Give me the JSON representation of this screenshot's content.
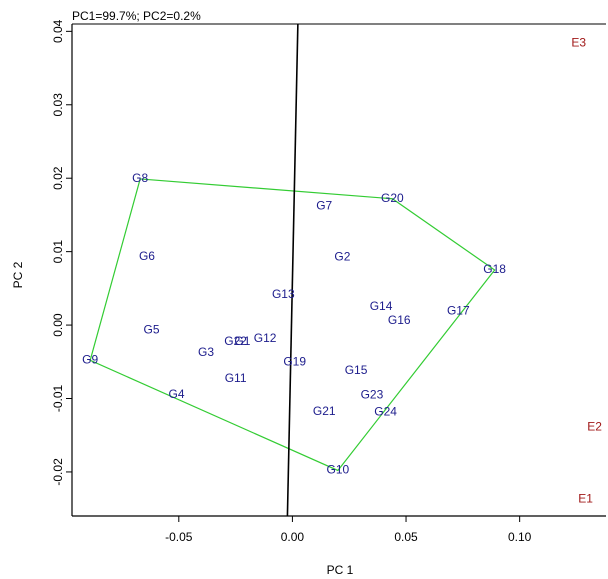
{
  "header": {
    "variance_text": "PC1=99.7%; PC2=0.2%"
  },
  "chart_data": {
    "type": "scatter",
    "title": "",
    "xlabel": "PC 1",
    "ylabel": "PC 2",
    "xlim": [
      -0.097,
      0.138
    ],
    "ylim": [
      -0.026,
      0.041
    ],
    "xticks": [
      -0.05,
      0.0,
      0.05,
      0.1
    ],
    "xtick_labels": [
      "-0.05",
      "0.00",
      "0.05",
      "0.10"
    ],
    "yticks": [
      -0.02,
      -0.01,
      0.0,
      0.01,
      0.02,
      0.03,
      0.04
    ],
    "ytick_labels": [
      "-0.02",
      "-0.01",
      "0.00",
      "0.01",
      "0.02",
      "0.03",
      "0.04"
    ],
    "grid": false,
    "colors": {
      "genotype": "#1c1c8c",
      "environment": "#a01818",
      "hull": "#33cc33",
      "line": "#000000"
    },
    "genotypes": [
      {
        "label": "G1",
        "x": -0.022,
        "y": -0.0023
      },
      {
        "label": "G2",
        "x": 0.022,
        "y": 0.0092
      },
      {
        "label": "G3",
        "x": -0.038,
        "y": -0.0038
      },
      {
        "label": "G4",
        "x": -0.051,
        "y": -0.0095
      },
      {
        "label": "G5",
        "x": -0.062,
        "y": -0.0007
      },
      {
        "label": "G6",
        "x": -0.064,
        "y": 0.0093
      },
      {
        "label": "G7",
        "x": 0.014,
        "y": 0.0162
      },
      {
        "label": "G8",
        "x": -0.067,
        "y": 0.0199
      },
      {
        "label": "G9",
        "x": -0.089,
        "y": -0.0048
      },
      {
        "label": "G10",
        "x": 0.02,
        "y": -0.0198
      },
      {
        "label": "G11",
        "x": -0.025,
        "y": -0.0073
      },
      {
        "label": "G12",
        "x": -0.012,
        "y": -0.0019
      },
      {
        "label": "G13",
        "x": -0.004,
        "y": 0.0041
      },
      {
        "label": "G14",
        "x": 0.039,
        "y": 0.0025
      },
      {
        "label": "G15",
        "x": 0.028,
        "y": -0.0062
      },
      {
        "label": "G16",
        "x": 0.047,
        "y": 0.0006
      },
      {
        "label": "G17",
        "x": 0.073,
        "y": 0.0019
      },
      {
        "label": "G18",
        "x": 0.089,
        "y": 0.0075
      },
      {
        "label": "G19",
        "x": 0.001,
        "y": -0.0051
      },
      {
        "label": "G20",
        "x": 0.044,
        "y": 0.0172
      },
      {
        "label": "G21",
        "x": 0.014,
        "y": -0.0118
      },
      {
        "label": "G22",
        "x": -0.025,
        "y": -0.0023
      },
      {
        "label": "G23",
        "x": 0.035,
        "y": -0.0096
      },
      {
        "label": "G24",
        "x": 0.041,
        "y": -0.0119
      }
    ],
    "environments": [
      {
        "label": "E1",
        "x": 0.129,
        "y": -0.0237
      },
      {
        "label": "E2",
        "x": 0.133,
        "y": -0.0139
      },
      {
        "label": "E3",
        "x": 0.126,
        "y": 0.0384
      }
    ],
    "hull": [
      "G8",
      "G20",
      "G18",
      "G10",
      "G9"
    ],
    "reference_line": {
      "x1": 0.0024,
      "y1": 0.041,
      "x2": -0.0022,
      "y2": -0.026
    }
  }
}
